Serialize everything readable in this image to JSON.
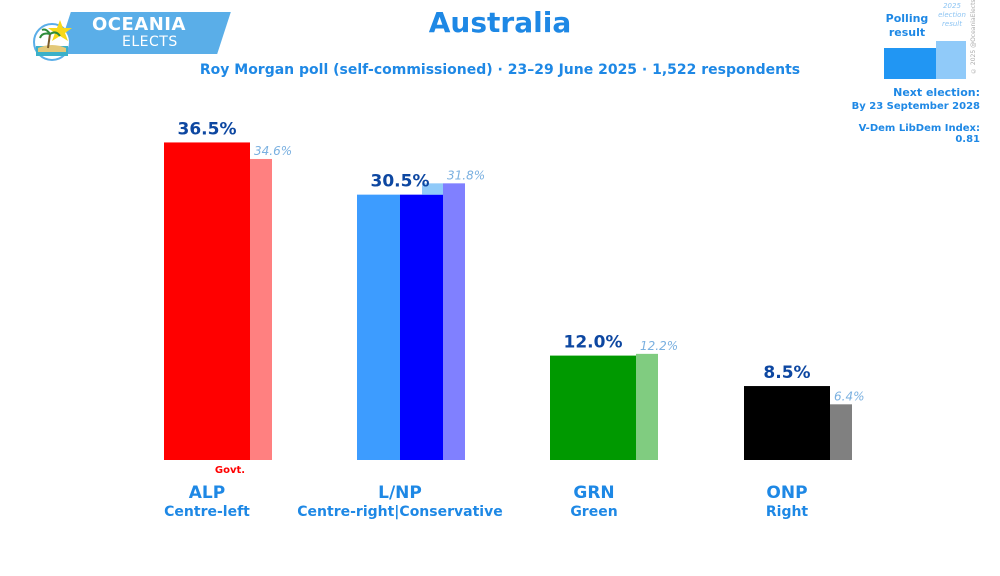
{
  "logo": {
    "line1": "OCEANIA",
    "line2": "ELECTS"
  },
  "title": "Australia",
  "subtitle": "Roy Morgan poll (self-commissioned) · 23–29 June 2025 · 1,522 respondents",
  "legend": {
    "polling_label": "Polling result",
    "election_label": "2025 election result",
    "copyright": "© 2025 @OceaniaElects"
  },
  "next_election": {
    "label": "Next election:",
    "value": "By 23 September 2028"
  },
  "vdem": "V-Dem LibDem Index: 0.81",
  "govt_label": "Govt.",
  "chart_data": {
    "type": "bar",
    "categories": [
      "ALP",
      "L/NP",
      "GRN",
      "ONP"
    ],
    "ideologies": [
      "Centre-left",
      "Centre-right|Conservative",
      "Green",
      "Right"
    ],
    "series": [
      {
        "name": "Polling result",
        "values": [
          36.5,
          30.5,
          12.0,
          8.5
        ],
        "labels": [
          "36.5%",
          "30.5%",
          "12.0%",
          "8.5%"
        ]
      },
      {
        "name": "2025 election result",
        "values": [
          34.6,
          31.8,
          12.2,
          6.4
        ],
        "labels": [
          "34.6%",
          "31.8%",
          "12.2%",
          "6.4%"
        ]
      }
    ],
    "colors": {
      "poll": [
        "#ff0000",
        null,
        "#009900",
        "#000000"
      ],
      "result": [
        "#ff8080",
        "#8080ff",
        "#80cc80",
        "#808080"
      ],
      "lnp_split": [
        "#3d9cff",
        "#0000ff"
      ],
      "lnp_overlap": "#90caf9"
    }
  }
}
